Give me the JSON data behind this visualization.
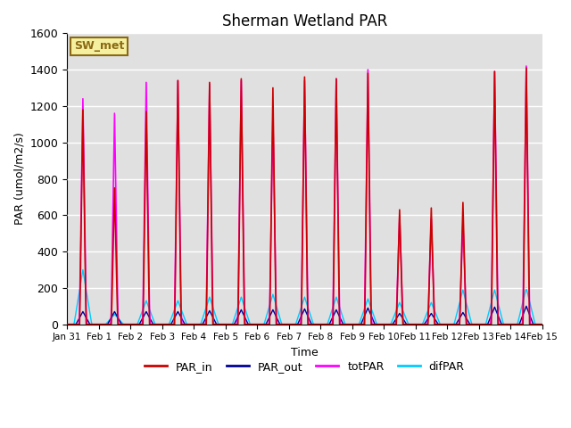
{
  "title": "Sherman Wetland PAR",
  "xlabel": "Time",
  "ylabel": "PAR (umol/m2/s)",
  "ylim": [
    0,
    1600
  ],
  "bg_color": "#e0e0e0",
  "annotation_text": "SW_met",
  "annotation_bg": "#f5f0a0",
  "annotation_border": "#8B6914",
  "legend_entries": [
    "PAR_in",
    "PAR_out",
    "totPAR",
    "difPAR"
  ],
  "colors": {
    "PAR_in": "#cc0000",
    "PAR_out": "#000099",
    "totPAR": "#ff00ff",
    "difPAR": "#00ccff"
  },
  "day_peaks": {
    "PAR_in": [
      1180,
      750,
      1170,
      1340,
      1330,
      1350,
      1300,
      1360,
      1350,
      1380,
      630,
      640,
      670,
      1390,
      1410
    ],
    "PAR_out": [
      70,
      70,
      70,
      70,
      75,
      80,
      80,
      85,
      80,
      90,
      60,
      60,
      65,
      95,
      100
    ],
    "totPAR": [
      1240,
      1160,
      1330,
      1340,
      1320,
      1340,
      1140,
      1340,
      1350,
      1400,
      600,
      580,
      560,
      1390,
      1420
    ],
    "difPAR": [
      300,
      55,
      130,
      130,
      150,
      150,
      165,
      150,
      150,
      140,
      120,
      120,
      190,
      190,
      200
    ]
  },
  "tick_labels": [
    "Jan 31",
    "Feb 1",
    "Feb 2",
    "Feb 3",
    "Feb 4",
    "Feb 5",
    "Feb 6",
    "Feb 7",
    "Feb 8",
    "Feb 9",
    "Feb 10",
    "Feb 11",
    "Feb 12",
    "Feb 13",
    "Feb 14",
    "Feb 15"
  ],
  "yticks": [
    0,
    200,
    400,
    600,
    800,
    1000,
    1200,
    1400,
    1600
  ]
}
